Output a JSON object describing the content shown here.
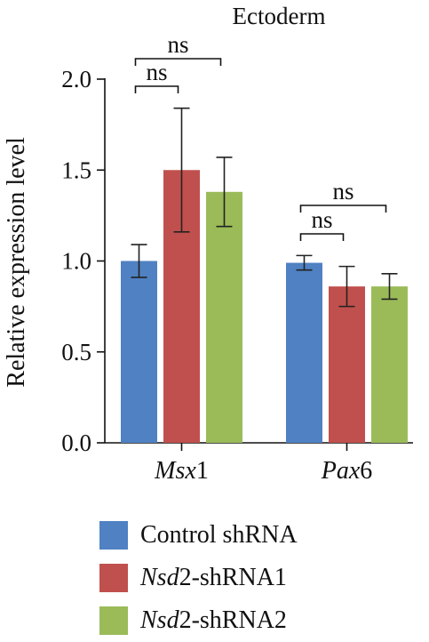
{
  "chart_data": {
    "type": "bar",
    "title": "Ectoderm",
    "ylabel": "Relative expression level",
    "xlabel": "",
    "ylim": [
      0,
      2.0
    ],
    "yticks": [
      "0.0",
      "0.5",
      "1.0",
      "1.5",
      "2.0"
    ],
    "grid": false,
    "legend_position": "bottom",
    "categories": [
      {
        "italic": "Msx",
        "plain": "1"
      },
      {
        "italic": "Pax",
        "plain": "6"
      }
    ],
    "series": [
      {
        "name_italic": "",
        "name_plain": "Control shRNA",
        "color": "#4f81c3",
        "values": [
          1.0,
          0.99
        ],
        "errors": [
          0.09,
          0.04
        ]
      },
      {
        "name_italic": "Nsd",
        "name_plain": "2-shRNA1",
        "color": "#c0504d",
        "values": [
          1.5,
          0.86
        ],
        "errors": [
          0.34,
          0.11
        ]
      },
      {
        "name_italic": "Nsd",
        "name_plain": "2-shRNA2",
        "color": "#9bbb59",
        "values": [
          1.38,
          0.86
        ],
        "errors": [
          0.19,
          0.07
        ]
      }
    ],
    "annotations": [
      {
        "text": "ns",
        "category": 0,
        "from_series": 0,
        "to_series": 1,
        "level": 0
      },
      {
        "text": "ns",
        "category": 0,
        "from_series": 0,
        "to_series": 2,
        "level": 1
      },
      {
        "text": "ns",
        "category": 1,
        "from_series": 0,
        "to_series": 1,
        "level": 0
      },
      {
        "text": "ns",
        "category": 1,
        "from_series": 0,
        "to_series": 2,
        "level": 1
      }
    ]
  }
}
